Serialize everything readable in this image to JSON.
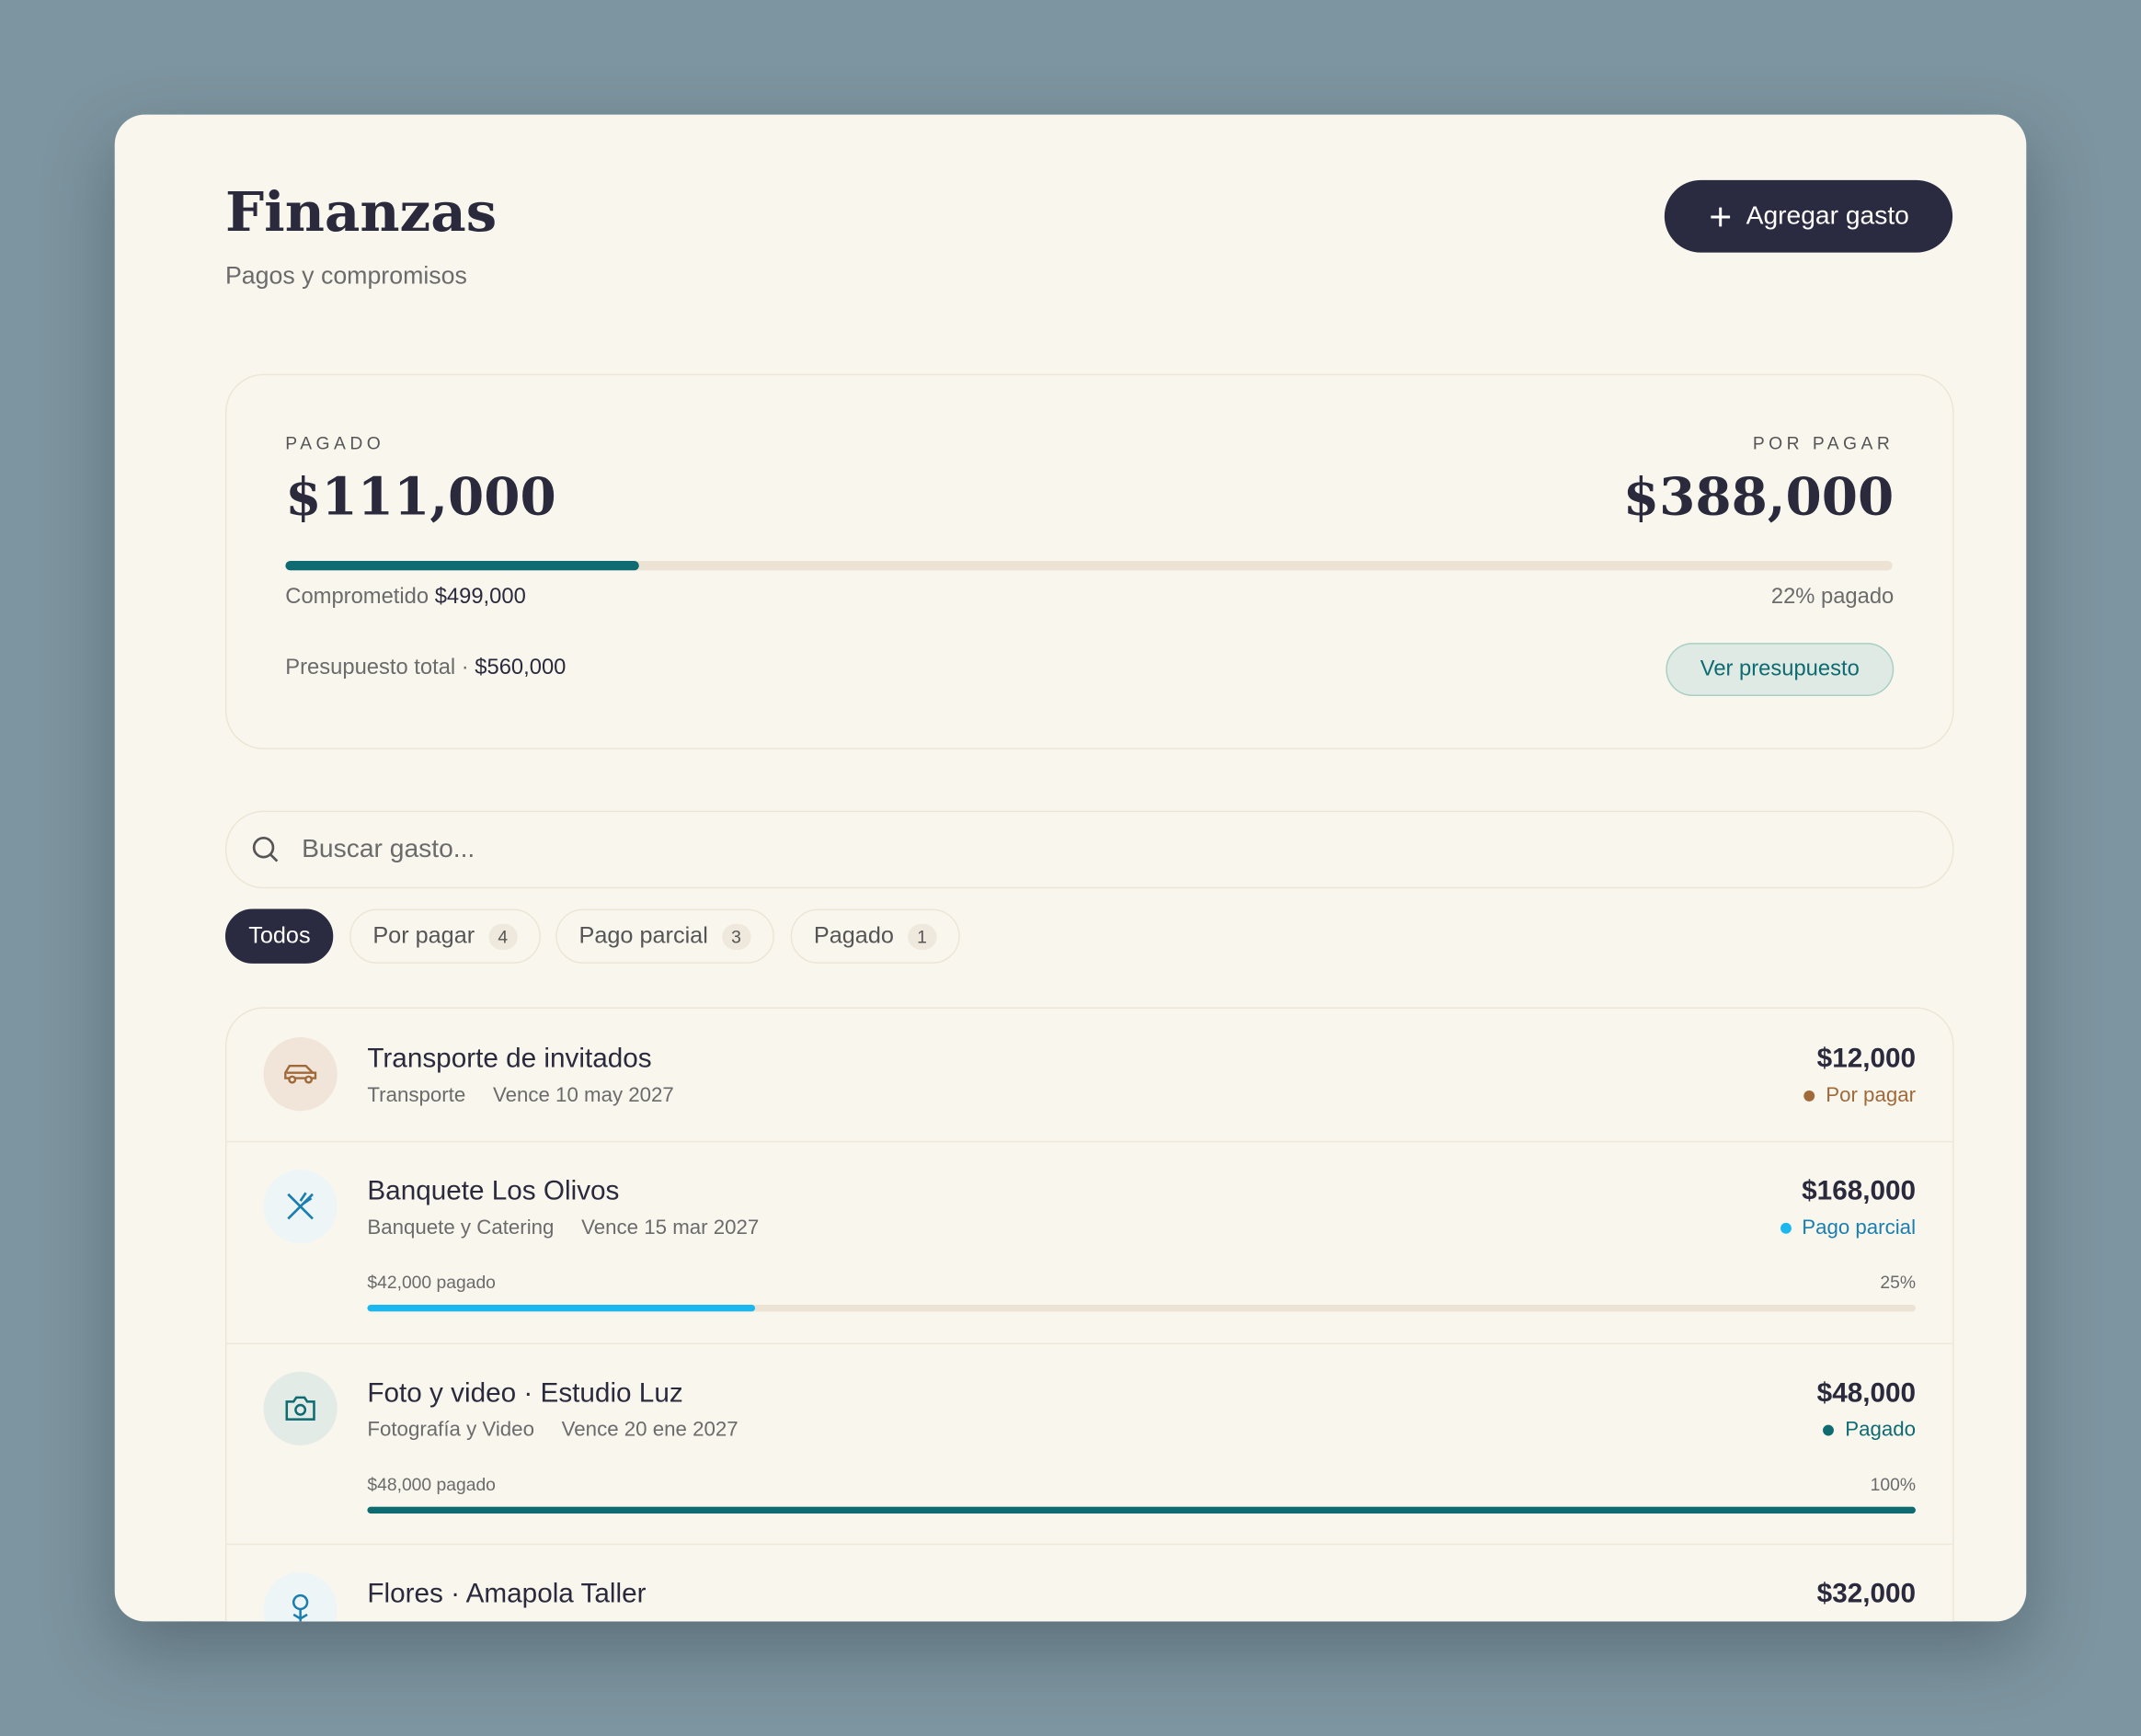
{
  "header": {
    "title": "Finanzas",
    "subtitle": "Pagos y compromisos",
    "button": "Agregar gasto"
  },
  "summary": {
    "paid_label": "PAGADO",
    "paid_amount": "$111,000",
    "due_label": "POR PAGAR",
    "due_amount": "$388,000",
    "progress": {
      "value": 22,
      "label": "22% pagado"
    },
    "committed_label": "Comprometido",
    "committed_amount": "$499,000",
    "budget_label": "Presupuesto total ·",
    "budget_amount": "$560,000",
    "budget_button": "Ver presupuesto"
  },
  "search": {
    "placeholder": "Buscar gasto..."
  },
  "filters": [
    {
      "label": "Todos"
    },
    {
      "label": "Por pagar",
      "count": 4
    },
    {
      "label": "Pago parcial",
      "count": 3
    },
    {
      "label": "Pagado",
      "count": 1
    }
  ],
  "items": [
    {
      "name": "Transporte de invitados",
      "category": "Transporte",
      "due": "Vence 10 may 2027",
      "amount": "$12,000",
      "status": "Por pagar"
    },
    {
      "name": "Banquete Los Olivos",
      "category": "Banquete y Catering",
      "due": "Vence 15 mar 2027",
      "amount": "$168,000",
      "status": "Pago parcial",
      "progress": {
        "paid_label": "$42,000 pagado",
        "value": 25,
        "label": "25%"
      }
    },
    {
      "name": "Foto y video · Estudio Luz",
      "category": "Fotografía y Video",
      "due": "Vence 20 ene 2027",
      "amount": "$48,000",
      "status": "Pagado",
      "progress": {
        "paid_label": "$48,000 pagado",
        "value": 100,
        "label": "100%"
      }
    },
    {
      "name": "Flores · Amapola Taller",
      "amount": "$32,000"
    }
  ]
}
